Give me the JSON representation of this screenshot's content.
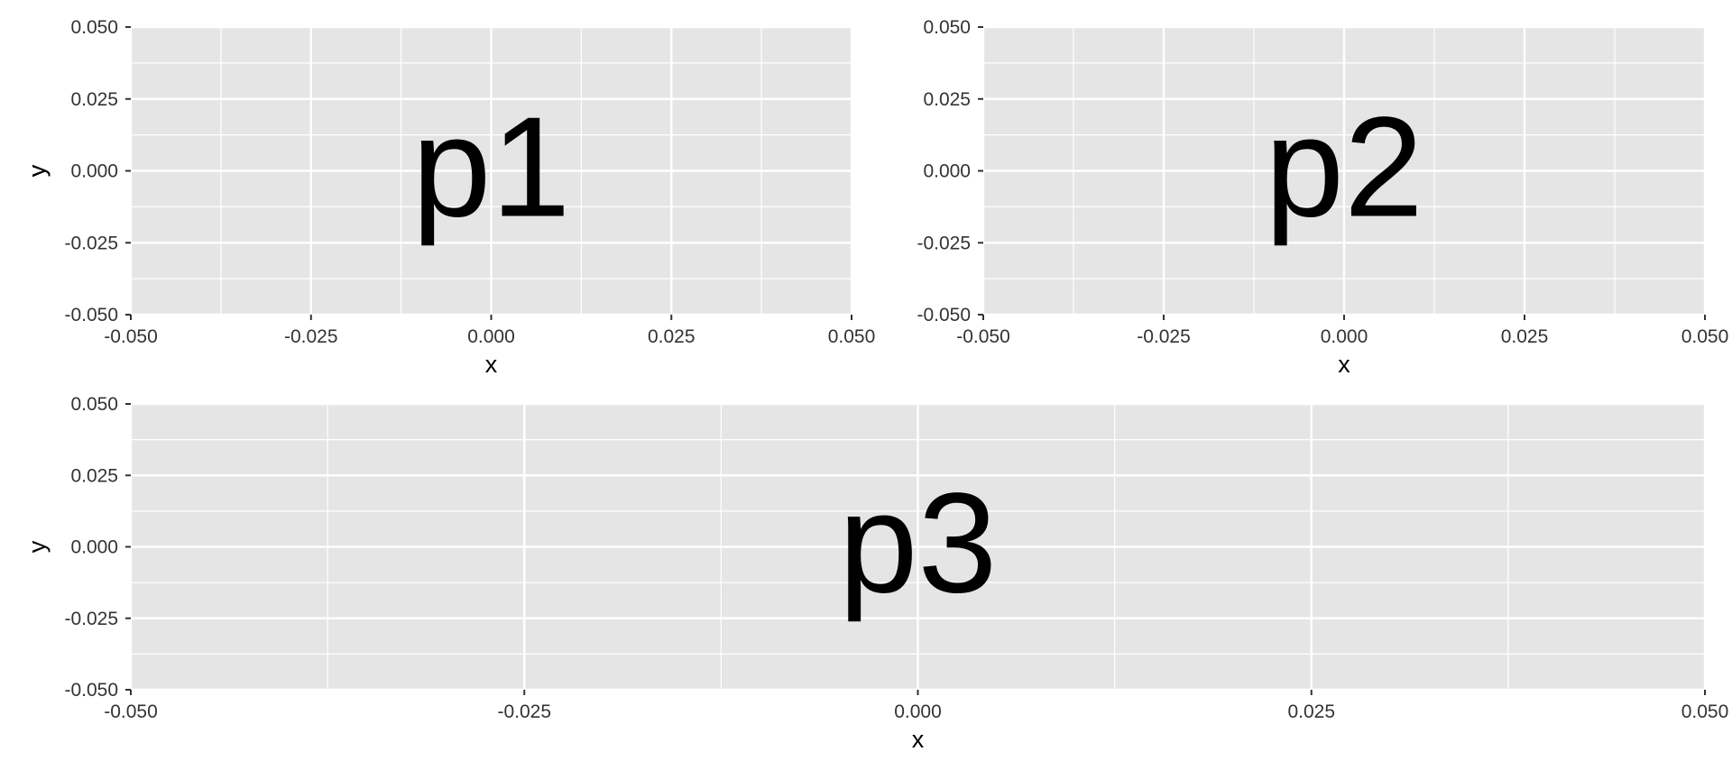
{
  "chart_data": [
    {
      "type": "scatter",
      "title": "",
      "annotation": "p1",
      "xlabel": "x",
      "ylabel": "y",
      "xlim": [
        -0.05,
        0.05
      ],
      "ylim": [
        -0.05,
        0.05
      ],
      "x_ticks": [
        "-0.050",
        "-0.025",
        "0.000",
        "0.025",
        "0.050"
      ],
      "y_ticks": [
        "-0.050",
        "-0.025",
        "0.000",
        "0.025",
        "0.050"
      ],
      "grid": true,
      "series": []
    },
    {
      "type": "scatter",
      "title": "",
      "annotation": "p2",
      "xlabel": "x",
      "ylabel": "y",
      "xlim": [
        -0.05,
        0.05
      ],
      "ylim": [
        -0.05,
        0.05
      ],
      "x_ticks": [
        "-0.050",
        "-0.025",
        "0.000",
        "0.025",
        "0.050"
      ],
      "y_ticks": [
        "-0.050",
        "-0.025",
        "0.000",
        "0.025",
        "0.050"
      ],
      "grid": true,
      "series": []
    },
    {
      "type": "scatter",
      "title": "",
      "annotation": "p3",
      "xlabel": "x",
      "ylabel": "y",
      "xlim": [
        -0.05,
        0.05
      ],
      "ylim": [
        -0.05,
        0.05
      ],
      "x_ticks": [
        "-0.050",
        "-0.025",
        "0.000",
        "0.025",
        "0.050"
      ],
      "y_ticks": [
        "-0.050",
        "-0.025",
        "0.000",
        "0.025",
        "0.050"
      ],
      "grid": true,
      "series": []
    }
  ],
  "colors": {
    "panel_background": "#e5e5e5",
    "grid_line": "#ffffff",
    "text": "#333333",
    "axis_title": "#000000",
    "annotation": "#000000"
  }
}
